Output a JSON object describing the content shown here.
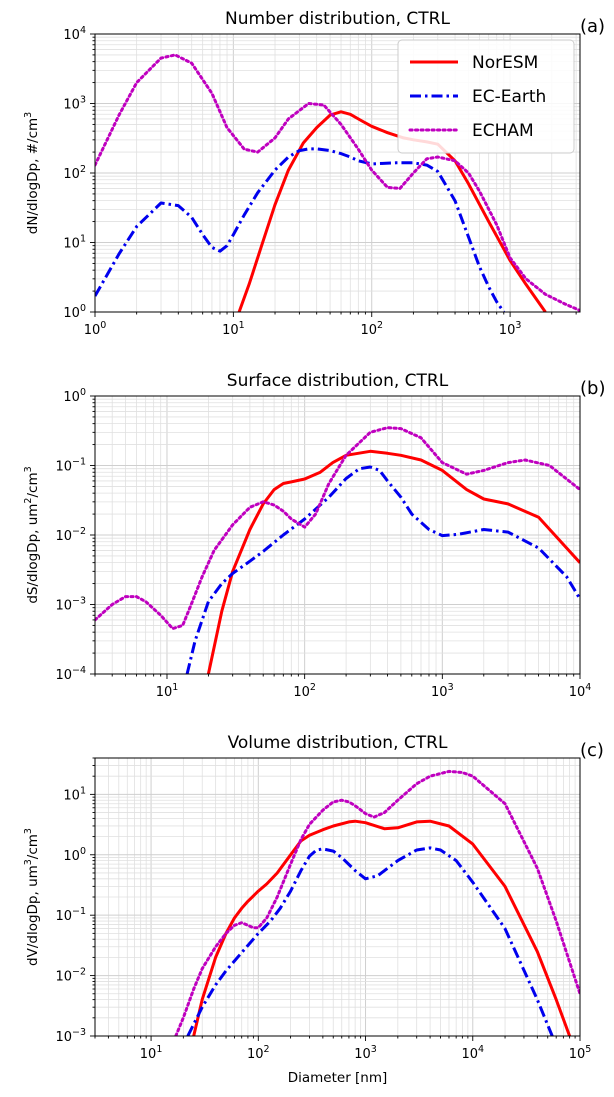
{
  "chart_data": [
    {
      "type": "line",
      "title": "Number distribution, CTRL",
      "panel_label": "(a)",
      "ylabel_text": "dN/dlogDp, #/cm",
      "ylabel_sup": "3",
      "xlabel": "",
      "xscale": "log",
      "yscale": "log",
      "xlim": [
        1,
        3200
      ],
      "ylim": [
        1,
        10000
      ],
      "xticks": [
        {
          "base": "10",
          "exp": "0",
          "value": 1
        },
        {
          "base": "10",
          "exp": "1",
          "value": 10
        },
        {
          "base": "10",
          "exp": "2",
          "value": 100
        },
        {
          "base": "10",
          "exp": "3",
          "value": 1000
        }
      ],
      "yticks": [
        {
          "base": "10",
          "exp": "0",
          "value": 1
        },
        {
          "base": "10",
          "exp": "1",
          "value": 10
        },
        {
          "base": "10",
          "exp": "2",
          "value": 100
        },
        {
          "base": "10",
          "exp": "3",
          "value": 1000
        },
        {
          "base": "10",
          "exp": "4",
          "value": 10000
        }
      ],
      "grid": true,
      "legend": "top-right",
      "series": [
        {
          "name": "NorESM",
          "color": "#ff0000",
          "dash": "solid",
          "x": [
            11,
            13,
            16,
            20,
            25,
            32,
            40,
            50,
            60,
            70,
            85,
            100,
            130,
            170,
            200,
            250,
            300,
            400,
            500,
            700,
            1000,
            1300,
            1800
          ],
          "y": [
            1.0,
            2.5,
            9,
            35,
            110,
            270,
            450,
            680,
            760,
            700,
            560,
            470,
            380,
            320,
            300,
            280,
            260,
            150,
            70,
            20,
            5.5,
            2.5,
            1.0
          ]
        },
        {
          "name": "EC-Earth",
          "color": "#0000ee",
          "dash": "dashdot",
          "x": [
            1,
            1.5,
            2,
            3,
            4,
            5,
            6,
            7,
            8,
            9,
            10,
            12,
            15,
            20,
            25,
            30,
            35,
            40,
            50,
            60,
            70,
            80,
            100,
            150,
            200,
            250,
            300,
            400,
            500,
            600,
            700,
            800,
            900
          ],
          "y": [
            1.7,
            7,
            17,
            37,
            34,
            23,
            13,
            8.5,
            7.5,
            9,
            13,
            25,
            52,
            110,
            170,
            210,
            222,
            222,
            210,
            190,
            170,
            150,
            135,
            140,
            140,
            130,
            105,
            40,
            12,
            4.5,
            2.3,
            1.4,
            1.0
          ]
        },
        {
          "name": "ECHAM",
          "color": "#bf00bf",
          "dash": "dotted",
          "x": [
            1,
            1.5,
            2,
            3,
            3.8,
            5,
            7,
            9,
            12,
            15,
            20,
            25,
            35,
            45,
            60,
            80,
            100,
            130,
            160,
            200,
            250,
            300,
            400,
            500,
            600,
            800,
            1000,
            1300,
            1800,
            2500,
            3200
          ],
          "y": [
            130,
            700,
            2000,
            4500,
            5000,
            3800,
            1400,
            450,
            220,
            200,
            320,
            600,
            1000,
            950,
            500,
            220,
            110,
            62,
            60,
            100,
            160,
            170,
            150,
            100,
            55,
            18,
            6,
            3,
            1.8,
            1.3,
            1.05
          ]
        }
      ]
    },
    {
      "type": "line",
      "title": "Surface distribution, CTRL",
      "panel_label": "(b)",
      "ylabel_text": "dS/dlogDp, um",
      "ylabel_mid": "/cm",
      "ylabel_sup": "2",
      "ylabel_sup2": "3",
      "xlabel": "",
      "xscale": "log",
      "yscale": "log",
      "xlim": [
        3,
        10000
      ],
      "ylim": [
        0.0001,
        1
      ],
      "xticks": [
        {
          "base": "10",
          "exp": "1",
          "value": 10
        },
        {
          "base": "10",
          "exp": "2",
          "value": 100
        },
        {
          "base": "10",
          "exp": "3",
          "value": 1000
        },
        {
          "base": "10",
          "exp": "4",
          "value": 10000
        }
      ],
      "yticks": [
        {
          "base": "10",
          "exp": "−4",
          "value": 0.0001
        },
        {
          "base": "10",
          "exp": "−3",
          "value": 0.001
        },
        {
          "base": "10",
          "exp": "−2",
          "value": 0.01
        },
        {
          "base": "10",
          "exp": "−1",
          "value": 0.1
        },
        {
          "base": "10",
          "exp": "0",
          "value": 1
        }
      ],
      "grid": true,
      "series": [
        {
          "name": "NorESM",
          "color": "#ff0000",
          "dash": "solid",
          "x": [
            20,
            25,
            30,
            40,
            50,
            60,
            70,
            80,
            100,
            130,
            160,
            200,
            300,
            400,
            500,
            700,
            1000,
            1500,
            2000,
            3000,
            5000,
            10000
          ],
          "y": [
            0.0001,
            0.0008,
            0.003,
            0.012,
            0.028,
            0.045,
            0.055,
            0.058,
            0.064,
            0.08,
            0.11,
            0.14,
            0.16,
            0.15,
            0.14,
            0.12,
            0.085,
            0.045,
            0.033,
            0.028,
            0.018,
            0.004
          ]
        },
        {
          "name": "EC-Earth",
          "color": "#0000ee",
          "dash": "dashdot",
          "x": [
            14,
            16,
            20,
            25,
            30,
            40,
            50,
            70,
            100,
            150,
            200,
            250,
            300,
            350,
            400,
            500,
            600,
            800,
            1000,
            1300,
            2000,
            3000,
            5000,
            8000,
            10000
          ],
          "y": [
            0.0001,
            0.0003,
            0.0011,
            0.002,
            0.0028,
            0.0042,
            0.0058,
            0.01,
            0.017,
            0.035,
            0.065,
            0.09,
            0.095,
            0.085,
            0.06,
            0.035,
            0.02,
            0.012,
            0.0098,
            0.0102,
            0.012,
            0.011,
            0.0065,
            0.0025,
            0.0012
          ]
        },
        {
          "name": "ECHAM",
          "color": "#bf00bf",
          "dash": "dotted",
          "x": [
            3,
            4,
            5,
            6,
            7,
            9,
            11,
            13,
            15,
            18,
            22,
            30,
            40,
            50,
            60,
            70,
            80,
            100,
            120,
            150,
            200,
            300,
            400,
            500,
            700,
            1000,
            1500,
            2000,
            3000,
            4000,
            6000,
            10000
          ],
          "y": [
            0.0006,
            0.001,
            0.0013,
            0.0013,
            0.0011,
            0.0007,
            0.00045,
            0.0005,
            0.001,
            0.0025,
            0.006,
            0.014,
            0.025,
            0.03,
            0.027,
            0.022,
            0.017,
            0.013,
            0.02,
            0.055,
            0.14,
            0.3,
            0.35,
            0.34,
            0.25,
            0.11,
            0.075,
            0.085,
            0.11,
            0.12,
            0.1,
            0.045
          ]
        }
      ]
    },
    {
      "type": "line",
      "title": "Volume distribution, CTRL",
      "panel_label": "(c)",
      "ylabel_text": "dV/dlogDp, um",
      "ylabel_mid": "/cm",
      "ylabel_sup": "3",
      "ylabel_sup2": "3",
      "xlabel": "Diameter [nm]",
      "xscale": "log",
      "yscale": "log",
      "xlim": [
        3,
        100000
      ],
      "ylim": [
        0.001,
        40
      ],
      "xticks": [
        {
          "base": "10",
          "exp": "1",
          "value": 10
        },
        {
          "base": "10",
          "exp": "2",
          "value": 100
        },
        {
          "base": "10",
          "exp": "3",
          "value": 1000
        },
        {
          "base": "10",
          "exp": "4",
          "value": 10000
        },
        {
          "base": "10",
          "exp": "5",
          "value": 100000
        }
      ],
      "yticks": [
        {
          "base": "10",
          "exp": "−3",
          "value": 0.001
        },
        {
          "base": "10",
          "exp": "−2",
          "value": 0.01
        },
        {
          "base": "10",
          "exp": "−1",
          "value": 0.1
        },
        {
          "base": "10",
          "exp": "0",
          "value": 1
        },
        {
          "base": "10",
          "exp": "1",
          "value": 10
        }
      ],
      "grid": true,
      "series": [
        {
          "name": "NorESM",
          "color": "#ff0000",
          "dash": "solid",
          "x": [
            25,
            30,
            40,
            50,
            60,
            70,
            80,
            100,
            120,
            150,
            200,
            250,
            300,
            400,
            500,
            700,
            800,
            1000,
            1500,
            2000,
            3000,
            4000,
            6000,
            10000,
            20000,
            40000,
            60000,
            80000
          ],
          "y": [
            0.001,
            0.004,
            0.02,
            0.05,
            0.09,
            0.13,
            0.17,
            0.25,
            0.33,
            0.5,
            1.0,
            1.7,
            2.1,
            2.6,
            3.0,
            3.5,
            3.6,
            3.4,
            2.7,
            2.8,
            3.5,
            3.6,
            3.0,
            1.5,
            0.3,
            0.025,
            0.004,
            0.001
          ]
        },
        {
          "name": "EC-Earth",
          "color": "#0000ee",
          "dash": "dashdot",
          "x": [
            22,
            30,
            40,
            50,
            70,
            100,
            130,
            160,
            200,
            250,
            300,
            350,
            400,
            500,
            600,
            800,
            1000,
            1300,
            2000,
            3000,
            4000,
            5000,
            7000,
            10000,
            20000,
            40000,
            55000
          ],
          "y": [
            0.001,
            0.003,
            0.007,
            0.012,
            0.024,
            0.05,
            0.08,
            0.13,
            0.25,
            0.55,
            0.95,
            1.2,
            1.25,
            1.15,
            0.9,
            0.55,
            0.4,
            0.45,
            0.8,
            1.2,
            1.3,
            1.2,
            0.8,
            0.35,
            0.06,
            0.004,
            0.001
          ]
        },
        {
          "name": "ECHAM",
          "color": "#bf00bf",
          "dash": "dotted",
          "x": [
            17,
            20,
            25,
            30,
            40,
            50,
            60,
            70,
            80,
            90,
            100,
            120,
            150,
            200,
            250,
            300,
            400,
            500,
            600,
            700,
            800,
            1000,
            1200,
            1500,
            2000,
            3000,
            4000,
            6000,
            8000,
            10000,
            20000,
            40000,
            60000,
            100000
          ],
          "y": [
            0.001,
            0.002,
            0.006,
            0.013,
            0.03,
            0.05,
            0.068,
            0.075,
            0.068,
            0.062,
            0.062,
            0.09,
            0.2,
            0.7,
            1.8,
            3.2,
            5.5,
            7.5,
            8.0,
            7.5,
            6.5,
            4.8,
            4.2,
            5.0,
            8.0,
            15,
            20,
            24,
            23,
            20,
            7,
            0.6,
            0.08,
            0.005
          ]
        }
      ]
    }
  ]
}
